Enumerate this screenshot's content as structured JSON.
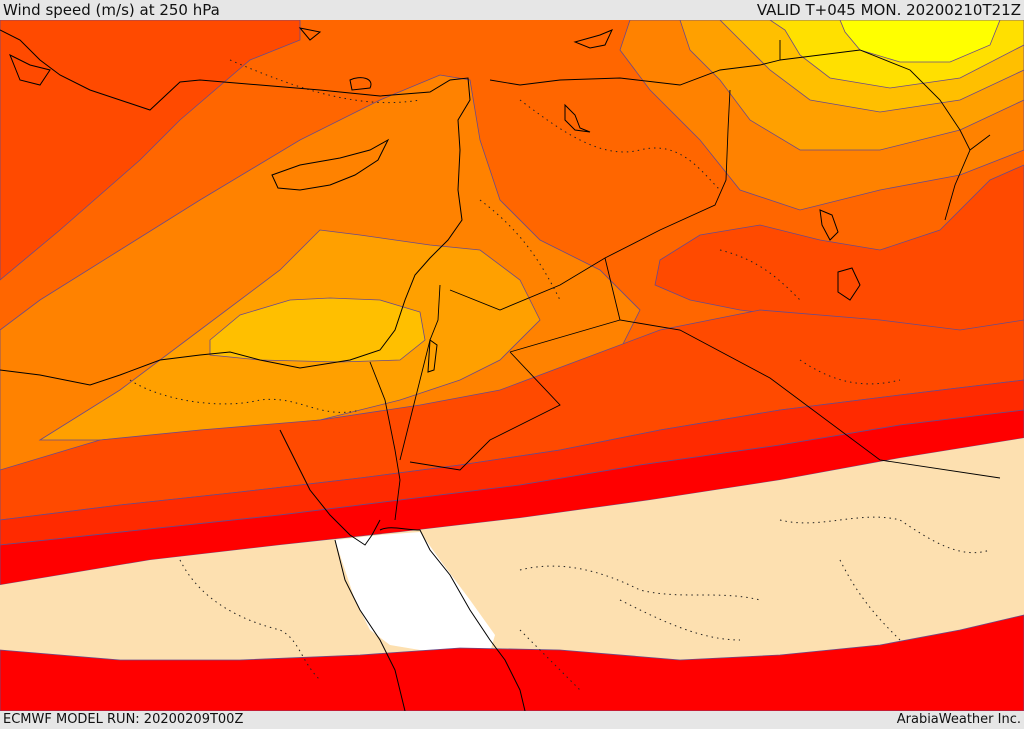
{
  "header": {
    "title": "Wind speed (m/s) at 250 hPa",
    "valid": "VALID T+045 MON. 20200210T21Z"
  },
  "footer": {
    "model_run": "ECMWF MODEL RUN: 20200209T00Z",
    "credit": "ArabiaWeather Inc."
  },
  "colors": {
    "band_20_30": "#fde0b0",
    "band_30_40": "#ff0000",
    "band_40_45": "#ff2a00",
    "band_45_50": "#ff4a00",
    "band_50_55": "#ff6600",
    "band_55_60": "#ff8200",
    "band_60_65": "#ffa000",
    "band_65_70": "#ffbf00",
    "band_70_75": "#ffe000",
    "band_75_80": "#ffff00",
    "calm": "#ffffff",
    "coastline": "#000000",
    "contour": "#6a4a8a"
  }
}
